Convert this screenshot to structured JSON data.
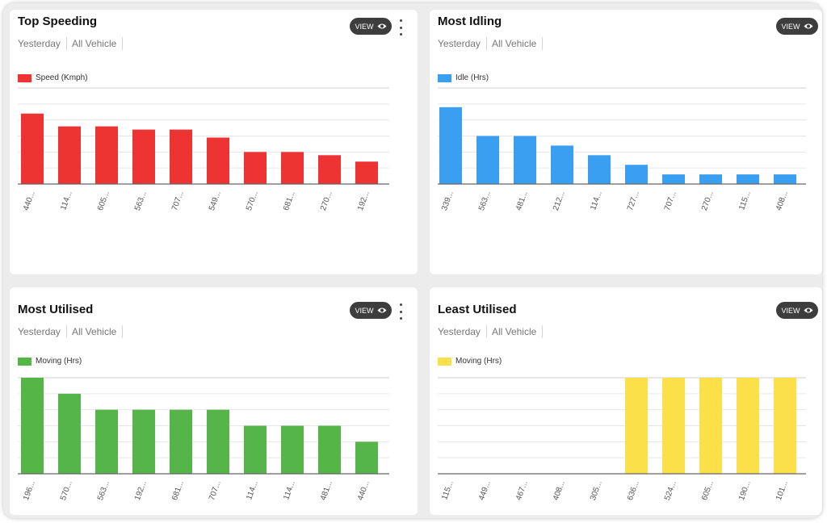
{
  "cards": [
    {
      "id": "top-speeding",
      "title": "Top Speeding",
      "filters": [
        "Yesterday",
        "All Vehicle"
      ],
      "view_label": "VIEW",
      "has_menu": true,
      "chart_data": {
        "type": "bar",
        "title": "Top Speeding",
        "series": [
          {
            "name": "Speed (Kmph)",
            "color": "#ee3333",
            "values": [
              44,
              36,
              36,
              34,
              34,
              29,
              20,
              20,
              18,
              14
            ]
          }
        ],
        "categories": [
          "440...",
          "114...",
          "605...",
          "563...",
          "707...",
          "549...",
          "570...",
          "681...",
          "270...",
          "192..."
        ],
        "ylim": [
          0,
          60
        ],
        "grid": true,
        "legend": "top-left"
      }
    },
    {
      "id": "most-idling",
      "title": "Most Idling",
      "filters": [
        "Yesterday",
        "All Vehicle"
      ],
      "view_label": "VIEW",
      "has_menu": false,
      "chart_data": {
        "type": "bar",
        "title": "Most Idling",
        "series": [
          {
            "name": "Idle (Hrs)",
            "color": "#3a9ff0",
            "values": [
              3.2,
              2.0,
              2.0,
              1.6,
              1.2,
              0.8,
              0.4,
              0.4,
              0.4,
              0.4
            ]
          }
        ],
        "categories": [
          "339...",
          "563...",
          "481...",
          "212...",
          "114...",
          "727...",
          "707...",
          "270...",
          "115...",
          "408..."
        ],
        "ylim": [
          0,
          4
        ],
        "grid": true,
        "legend": "top-left"
      }
    },
    {
      "id": "most-utilised",
      "title": "Most Utilised",
      "filters": [
        "Yesterday",
        "All Vehicle"
      ],
      "view_label": "VIEW",
      "has_menu": true,
      "chart_data": {
        "type": "bar",
        "title": "Most Utilised",
        "series": [
          {
            "name": "Moving (Hrs)",
            "color": "#55b548",
            "values": [
              6.0,
              5.0,
              4.0,
              4.0,
              4.0,
              4.0,
              3.0,
              3.0,
              3.0,
              2.0
            ]
          }
        ],
        "categories": [
          "196...",
          "570...",
          "563...",
          "192...",
          "681...",
          "707...",
          "114...",
          "114...",
          "481...",
          "440..."
        ],
        "ylim": [
          0,
          6
        ],
        "grid": true,
        "legend": "top-left"
      }
    },
    {
      "id": "least-utilised",
      "title": "Least Utilised",
      "filters": [
        "Yesterday",
        "All Vehicle"
      ],
      "view_label": "VIEW",
      "has_menu": false,
      "chart_data": {
        "type": "bar",
        "title": "Least Utilised",
        "series": [
          {
            "name": "Moving (Hrs)",
            "color": "#fbe04a",
            "values": [
              0,
              0,
              0,
              0,
              0,
              1,
              1,
              1,
              1,
              1
            ]
          }
        ],
        "categories": [
          "115...",
          "449...",
          "467...",
          "408...",
          "305...",
          "636...",
          "524...",
          "605...",
          "190...",
          "101..."
        ],
        "ylim": [
          0,
          1
        ],
        "grid": true,
        "legend": "top-left"
      }
    }
  ]
}
